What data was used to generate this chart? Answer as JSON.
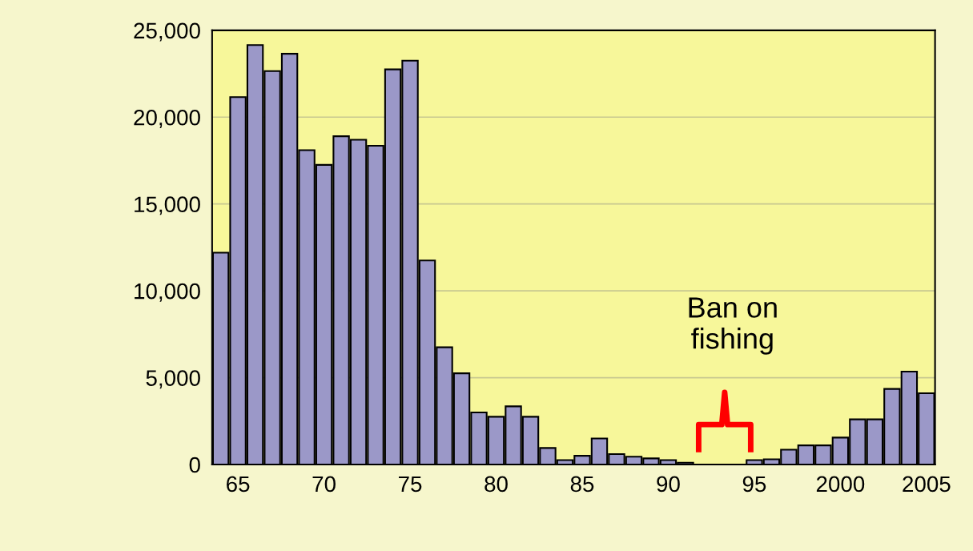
{
  "chart_data": {
    "type": "bar",
    "x": [
      1964,
      1965,
      1966,
      1967,
      1968,
      1969,
      1970,
      1971,
      1972,
      1973,
      1974,
      1975,
      1976,
      1977,
      1978,
      1979,
      1980,
      1981,
      1982,
      1983,
      1984,
      1985,
      1986,
      1987,
      1988,
      1989,
      1990,
      1991,
      1992,
      1993,
      1994,
      1995,
      1996,
      1997,
      1998,
      1999,
      2000,
      2001,
      2002,
      2003,
      2004,
      2005
    ],
    "values": [
      12200,
      21150,
      24150,
      22650,
      23650,
      18100,
      17250,
      18900,
      18700,
      18350,
      22750,
      23250,
      11750,
      6750,
      5250,
      3000,
      2750,
      3350,
      2750,
      950,
      250,
      500,
      1500,
      600,
      450,
      350,
      250,
      100,
      null,
      null,
      null,
      250,
      300,
      850,
      1100,
      1100,
      1550,
      2600,
      2600,
      4350,
      5350,
      4100
    ],
    "color": "#9b98c8",
    "xlim": [
      1963.5,
      2005.5
    ],
    "xticks": [
      {
        "value": 1965,
        "label": "65"
      },
      {
        "value": 1970,
        "label": "70"
      },
      {
        "value": 1975,
        "label": "75"
      },
      {
        "value": 1980,
        "label": "80"
      },
      {
        "value": 1985,
        "label": "85"
      },
      {
        "value": 1990,
        "label": "90"
      },
      {
        "value": 1995,
        "label": "95"
      },
      {
        "value": 2000,
        "label": "2000"
      },
      {
        "value": 2005,
        "label": "2005"
      }
    ],
    "ylim": [
      0,
      25000
    ],
    "yticks": [
      {
        "value": 0,
        "label": "0"
      },
      {
        "value": 5000,
        "label": "5,000"
      },
      {
        "value": 10000,
        "label": "10,000"
      },
      {
        "value": 15000,
        "label": "15,000"
      },
      {
        "value": 20000,
        "label": "20,000"
      },
      {
        "value": 25000,
        "label": "25,000"
      }
    ],
    "grid": "y",
    "annotations": [
      "Ban on\nfishing"
    ]
  }
}
